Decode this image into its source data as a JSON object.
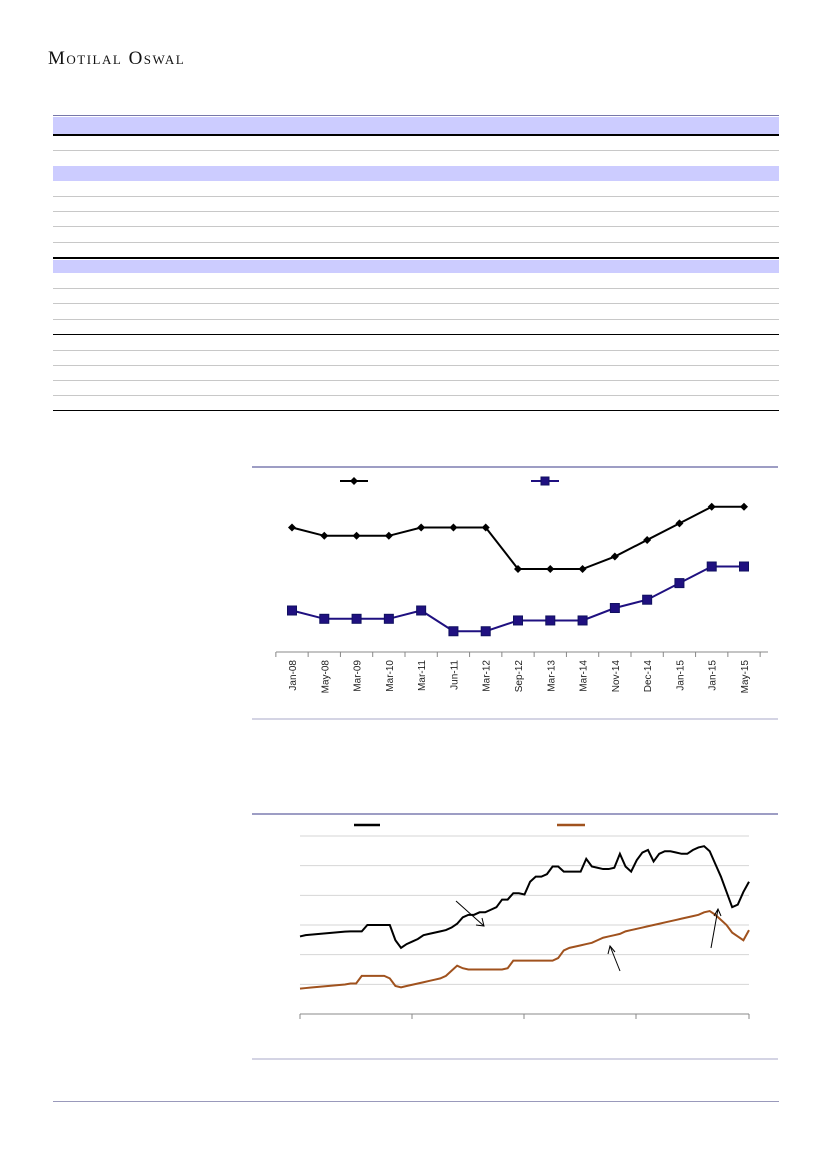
{
  "header": {
    "brand": "Motilal Oswal"
  },
  "chart1": {
    "chart_data": {
      "type": "line",
      "categories": [
        "Jan-08",
        "May-08",
        "Mar-09",
        "Mar-10",
        "Mar-11",
        "Jun-11",
        "Mar-12",
        "Sep-12",
        "Mar-13",
        "Mar-14",
        "Nov-14",
        "Dec-14",
        "Jan-15",
        "Jan-15",
        "May-15"
      ],
      "series": [
        {
          "color": "#000000",
          "marker": "diamond",
          "values": [
            37.0,
            36.0,
            36.0,
            36.0,
            37.0,
            37.0,
            37.0,
            32.0,
            32.0,
            32.0,
            33.5,
            35.5,
            37.5,
            39.5,
            39.5
          ]
        },
        {
          "color": "#1f1080",
          "marker": "square",
          "values": [
            27.0,
            26.0,
            26.0,
            26.0,
            27.0,
            24.5,
            24.5,
            25.8,
            25.8,
            25.8,
            27.3,
            28.3,
            30.3,
            32.3,
            32.3
          ]
        }
      ],
      "ylim": [
        22,
        42
      ],
      "grid": false,
      "legend": "top"
    }
  },
  "chart2": {
    "chart_data": {
      "type": "line",
      "series": [
        {
          "color": "#000000",
          "values": [
            3.05,
            3.1,
            3.12,
            3.14,
            3.16,
            3.18,
            3.2,
            3.22,
            3.24,
            3.25,
            3.25,
            3.25,
            3.5,
            3.5,
            3.5,
            3.5,
            3.5,
            2.9,
            2.6,
            2.75,
            2.85,
            2.95,
            3.1,
            3.15,
            3.2,
            3.25,
            3.3,
            3.4,
            3.55,
            3.8,
            3.9,
            3.9,
            4.0,
            4.0,
            4.1,
            4.2,
            4.5,
            4.5,
            4.75,
            4.75,
            4.7,
            5.2,
            5.4,
            5.4,
            5.5,
            5.8,
            5.8,
            5.6,
            5.6,
            5.6,
            5.6,
            6.1,
            5.8,
            5.75,
            5.7,
            5.7,
            5.75,
            6.3,
            5.8,
            5.6,
            6.05,
            6.35,
            6.45,
            6.0,
            6.3,
            6.4,
            6.4,
            6.35,
            6.3,
            6.3,
            6.45,
            6.55,
            6.6,
            6.4,
            5.9,
            5.4,
            4.8,
            4.2,
            4.3,
            4.8,
            5.2
          ]
        },
        {
          "color": "#a0521e",
          "values": [
            1.0,
            1.02,
            1.04,
            1.06,
            1.08,
            1.1,
            1.12,
            1.14,
            1.16,
            1.2,
            1.2,
            1.5,
            1.5,
            1.5,
            1.5,
            1.5,
            1.4,
            1.1,
            1.05,
            1.1,
            1.15,
            1.2,
            1.25,
            1.3,
            1.35,
            1.4,
            1.5,
            1.7,
            1.9,
            1.8,
            1.75,
            1.75,
            1.75,
            1.75,
            1.75,
            1.75,
            1.75,
            1.8,
            2.1,
            2.1,
            2.1,
            2.1,
            2.1,
            2.1,
            2.1,
            2.1,
            2.2,
            2.5,
            2.6,
            2.65,
            2.7,
            2.75,
            2.8,
            2.9,
            3.0,
            3.05,
            3.1,
            3.15,
            3.25,
            3.3,
            3.35,
            3.4,
            3.45,
            3.5,
            3.55,
            3.6,
            3.65,
            3.7,
            3.75,
            3.8,
            3.85,
            3.9,
            4.0,
            4.05,
            3.9,
            3.7,
            3.5,
            3.2,
            3.05,
            2.9,
            3.3
          ]
        }
      ],
      "ylim": [
        0,
        7
      ],
      "grid": true,
      "legend": "top"
    }
  }
}
